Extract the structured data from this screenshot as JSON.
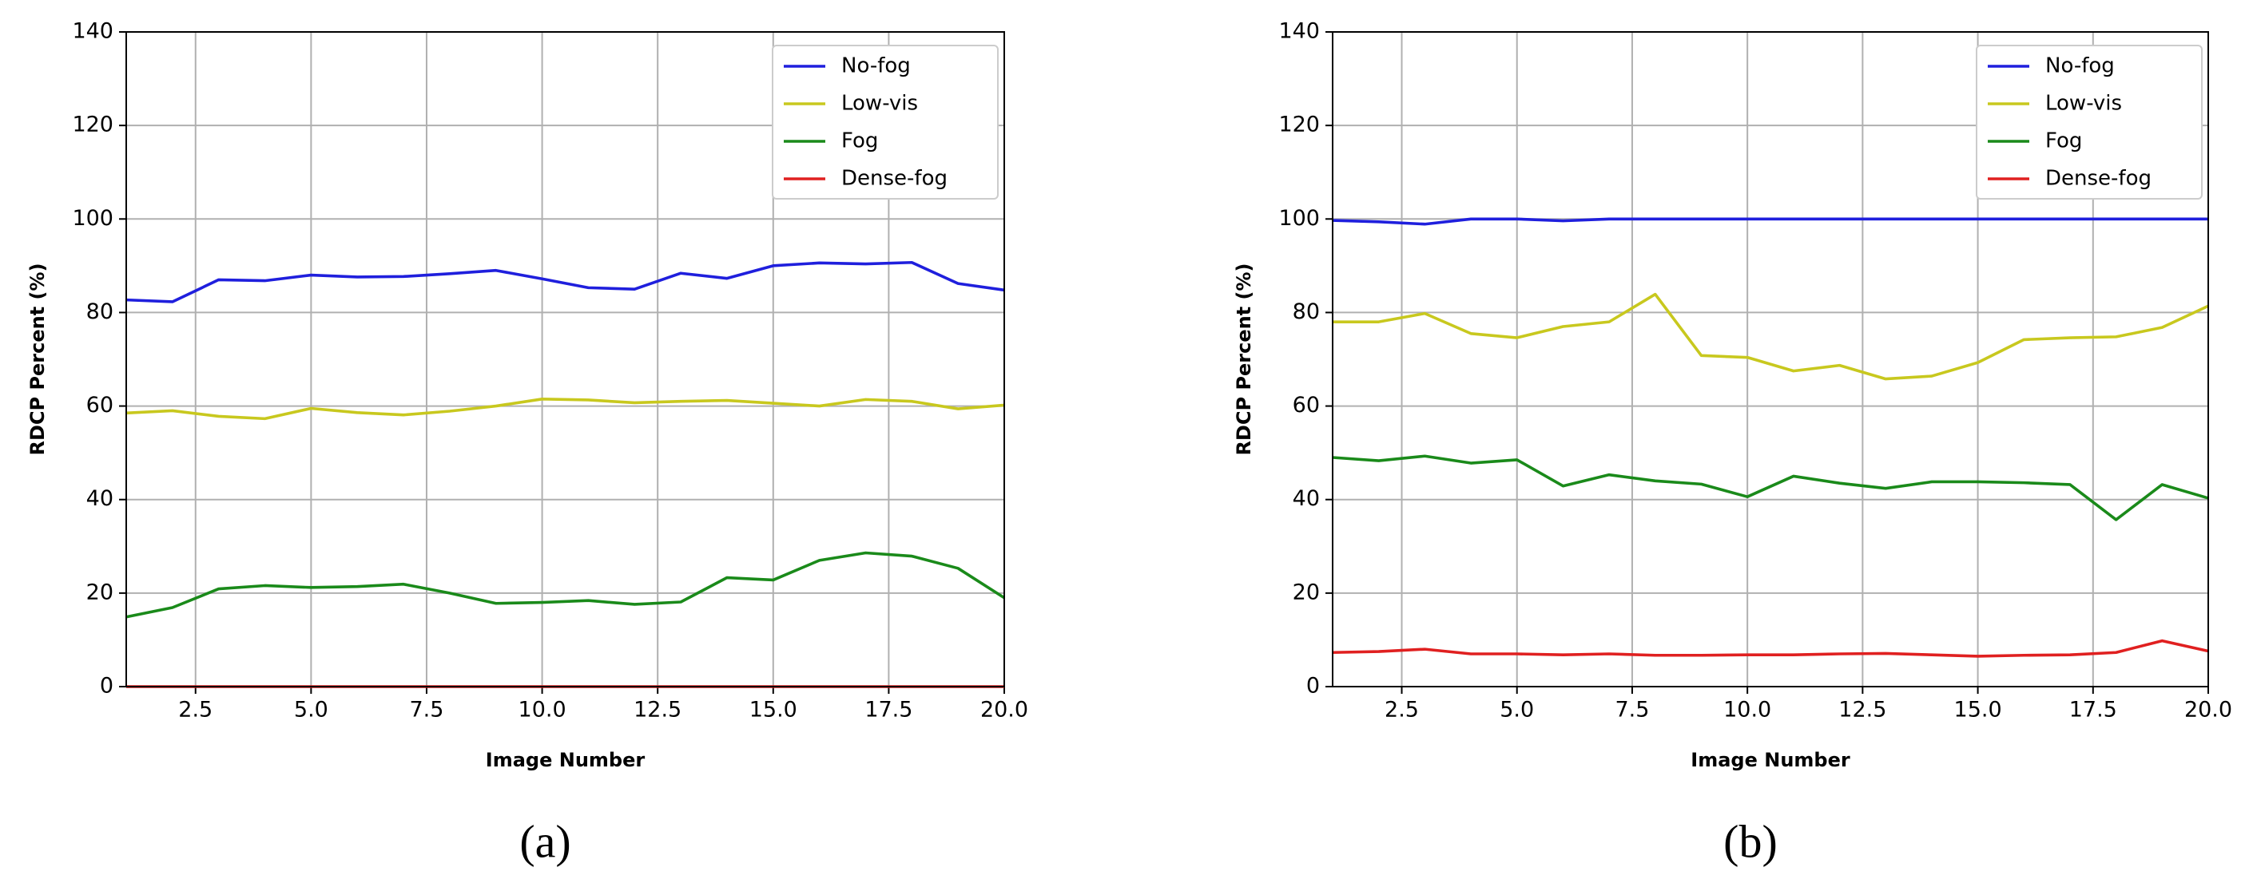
{
  "chart_data": [
    {
      "type": "line",
      "label": "(a)",
      "x_label": "Image Number",
      "y_label": "RDCP Percent (%)",
      "x": [
        1,
        2,
        3,
        4,
        5,
        6,
        7,
        8,
        9,
        10,
        11,
        12,
        13,
        14,
        15,
        16,
        17,
        18,
        19,
        20
      ],
      "xlim": [
        1,
        20
      ],
      "ylim": [
        0,
        140
      ],
      "xticks": [
        2.5,
        {
          "value": 5,
          "label": "5.0"
        },
        7.5,
        {
          "value": 10,
          "label": "10.0"
        },
        12.5,
        {
          "value": 15,
          "label": "15.0"
        },
        17.5,
        {
          "value": 20,
          "label": "20.0"
        }
      ],
      "yticks": [
        0,
        20,
        40,
        60,
        80,
        100,
        120,
        140
      ],
      "grid": true,
      "legend": "upper right",
      "series": [
        {
          "name": "No-fog",
          "color": "#1f1fdd",
          "values": [
            82.7,
            82.3,
            87,
            86.8,
            88,
            87.6,
            87.7,
            88.3,
            89,
            87.2,
            85.3,
            85,
            88.4,
            87.3,
            90,
            90.6,
            90.4,
            90.7,
            86.2,
            84.8
          ]
        },
        {
          "name": "Low-vis",
          "color": "#c8c81e",
          "values": [
            58.5,
            59,
            57.8,
            57.3,
            59.5,
            58.6,
            58.1,
            58.9,
            60,
            61.5,
            61.3,
            60.7,
            61,
            61.2,
            60.6,
            60,
            61.4,
            61,
            59.4,
            60.2
          ]
        },
        {
          "name": "Fog",
          "color": "#1a8a1a",
          "values": [
            14.9,
            16.9,
            20.9,
            21.6,
            21.2,
            21.4,
            21.9,
            20,
            17.8,
            18,
            18.4,
            17.6,
            18.1,
            23.3,
            22.8,
            27,
            28.6,
            27.9,
            25.3,
            19
          ]
        },
        {
          "name": "Dense-fog",
          "color": "#e02020",
          "values": [
            0,
            0,
            0,
            0,
            0,
            0,
            0,
            0,
            0,
            0,
            0,
            0,
            0,
            0,
            0,
            0,
            0,
            0,
            0,
            0
          ]
        }
      ]
    },
    {
      "type": "line",
      "label": "(b)",
      "x_label": "Image Number",
      "y_label": "RDCP Percent (%)",
      "x": [
        1,
        2,
        3,
        4,
        5,
        6,
        7,
        8,
        9,
        10,
        11,
        12,
        13,
        14,
        15,
        16,
        17,
        18,
        19,
        20
      ],
      "xlim": [
        1,
        20
      ],
      "ylim": [
        0,
        140
      ],
      "xticks": [
        2.5,
        {
          "value": 5,
          "label": "5.0"
        },
        7.5,
        {
          "value": 10,
          "label": "10.0"
        },
        12.5,
        {
          "value": 15,
          "label": "15.0"
        },
        17.5,
        {
          "value": 20,
          "label": "20.0"
        }
      ],
      "yticks": [
        0,
        20,
        40,
        60,
        80,
        100,
        120,
        140
      ],
      "grid": true,
      "legend": "upper right",
      "series": [
        {
          "name": "No-fog",
          "color": "#1f1fdd",
          "values": [
            99.7,
            99.4,
            98.9,
            100,
            100,
            99.6,
            100,
            100,
            100,
            100,
            100,
            100,
            100,
            100,
            100,
            100,
            100,
            100,
            100,
            100
          ]
        },
        {
          "name": "Low-vis",
          "color": "#c8c81e",
          "values": [
            78,
            78,
            79.8,
            75.5,
            74.6,
            77,
            78,
            83.9,
            70.8,
            70.4,
            67.5,
            68.7,
            65.8,
            66.4,
            69.3,
            74.2,
            74.6,
            74.8,
            76.8,
            81.4
          ]
        },
        {
          "name": "Fog",
          "color": "#1a8a1a",
          "values": [
            49,
            48.3,
            49.3,
            47.8,
            48.5,
            42.9,
            45.3,
            44,
            43.3,
            40.6,
            45,
            43.5,
            42.4,
            43.8,
            43.8,
            43.6,
            43.2,
            35.7,
            43.2,
            40.3
          ]
        },
        {
          "name": "Dense-fog",
          "color": "#e02020",
          "values": [
            7.3,
            7.5,
            8,
            7,
            7,
            6.8,
            7,
            6.7,
            6.7,
            6.8,
            6.8,
            7,
            7.1,
            6.8,
            6.5,
            6.7,
            6.8,
            7.3,
            9.8,
            7.6
          ]
        }
      ]
    }
  ]
}
